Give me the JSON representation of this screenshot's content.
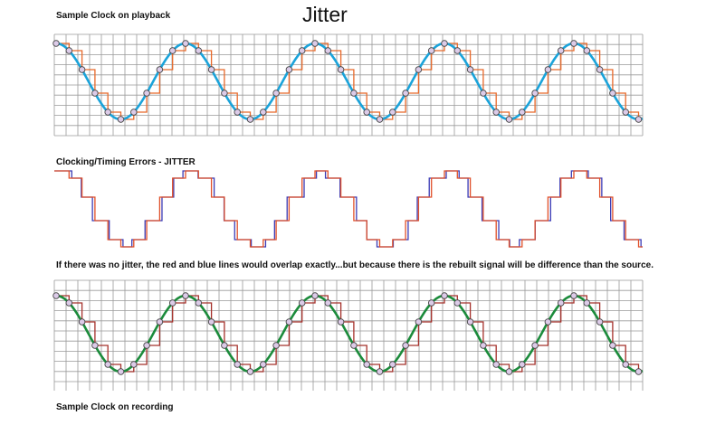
{
  "header": {
    "title": "Jitter"
  },
  "labels": {
    "playback": "Sample Clock on playback",
    "errors": "Clocking/Timing Errors - JITTER",
    "note": "If there was no jitter, the red and blue lines would overlap exactly...but because there is the rebuilt signal will be difference than the source.",
    "recording": "Sample Clock on recording"
  }
}
